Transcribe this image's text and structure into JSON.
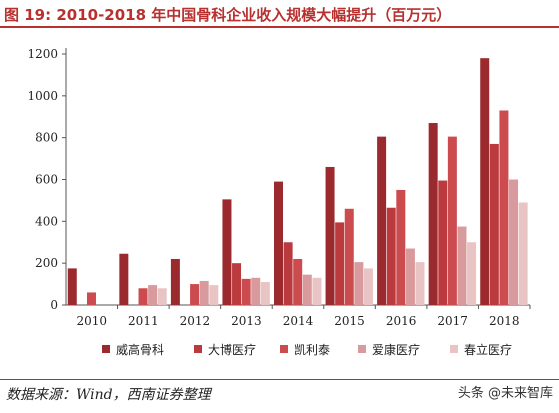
{
  "title": "图 19: 2010-2018 年中国骨科企业收入规模大幅提升（百万元）",
  "source": "数据来源：Wind，西南证券整理",
  "watermark": "头条 @未来智库",
  "chart_data": {
    "type": "bar",
    "categories": [
      "2010",
      "2011",
      "2012",
      "2013",
      "2014",
      "2015",
      "2016",
      "2017",
      "2018"
    ],
    "ylim": [
      0,
      1200
    ],
    "yticks": [
      0,
      200,
      400,
      600,
      800,
      1000,
      1200
    ],
    "grid": false,
    "legend_position": "bottom",
    "series": [
      {
        "name": "威高骨科",
        "color": "#9b2a2f",
        "values": [
          175,
          245,
          220,
          505,
          590,
          660,
          805,
          870,
          1180
        ]
      },
      {
        "name": "大博医疗",
        "color": "#bb3a3e",
        "values": [
          null,
          null,
          null,
          200,
          300,
          395,
          465,
          595,
          770
        ]
      },
      {
        "name": "凯利泰",
        "color": "#cc4b4e",
        "values": [
          60,
          80,
          100,
          125,
          220,
          460,
          550,
          805,
          930
        ]
      },
      {
        "name": "爱康医疗",
        "color": "#d89a9c",
        "values": [
          null,
          95,
          115,
          130,
          145,
          205,
          270,
          375,
          600
        ]
      },
      {
        "name": "春立医疗",
        "color": "#e8c4c5",
        "values": [
          null,
          80,
          95,
          110,
          130,
          175,
          205,
          300,
          490
        ]
      }
    ]
  }
}
